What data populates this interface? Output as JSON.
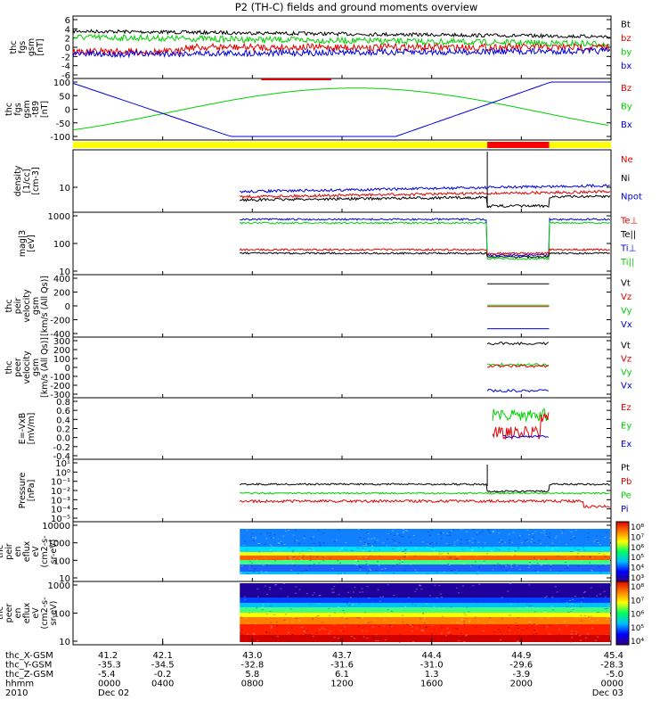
{
  "title": "P2 (TH-C) fields and ground moments overview",
  "colors": {
    "black": "#000000",
    "red": "#e00000",
    "green": "#00d000",
    "blue": "#0000e0",
    "yellow": "#ffff00",
    "bar_red": "#ff0000",
    "frame": "#000000"
  },
  "panels": [
    {
      "id": "fgs",
      "ylabel": [
        "thc",
        "fgs",
        "gsm",
        "[nT]"
      ],
      "yticks": [
        "6",
        "4",
        "2",
        "0",
        "-2",
        "-4",
        "-6"
      ],
      "ylim": [
        -6,
        6
      ],
      "legend": [
        {
          "label": "Bt",
          "color": "black"
        },
        {
          "label": "bz",
          "color": "red"
        },
        {
          "label": "by",
          "color": "green"
        },
        {
          "label": "bx",
          "color": "blue"
        }
      ]
    },
    {
      "id": "fgs_t89",
      "ylabel": [
        "thc",
        "fgs",
        "gsm",
        "-t89",
        "[nT]"
      ],
      "yticks": [
        "100",
        "50",
        "0",
        "-50",
        "-100"
      ],
      "ylim": [
        -125,
        100
      ],
      "legend": [
        {
          "label": "Bz",
          "color": "red"
        },
        {
          "label": "By",
          "color": "green"
        },
        {
          "label": "Bx",
          "color": "blue"
        }
      ]
    },
    {
      "id": "density",
      "ylabel": [
        "density",
        "[1/cc]",
        "[cm-3]"
      ],
      "yticks": [
        "10"
      ],
      "ylim_log": [
        0.3,
        300
      ],
      "legend": [
        {
          "label": "Ne",
          "color": "red"
        },
        {
          "label": "Ni",
          "color": "black"
        },
        {
          "label": "Npot",
          "color": "blue"
        }
      ]
    },
    {
      "id": "temperature",
      "ylabel": [
        "mag|3",
        "[eV]"
      ],
      "yticks": [
        "1000",
        "100",
        "10"
      ],
      "ylim_log": [
        3,
        1200
      ],
      "legend": [
        {
          "label": "Te⊥",
          "color": "red"
        },
        {
          "label": "Te||",
          "color": "black"
        },
        {
          "label": "Ti⊥",
          "color": "blue"
        },
        {
          "label": "Ti||",
          "color": "green"
        }
      ]
    },
    {
      "id": "peir_velocity",
      "ylabel": [
        "thc",
        "peir",
        "velocity",
        "gsm",
        "[km/s (All Qs)]"
      ],
      "yticks": [
        "400",
        "200",
        "0",
        "-200",
        "-400"
      ],
      "ylim": [
        -400,
        400
      ],
      "legend": [
        {
          "label": "Vt",
          "color": "black"
        },
        {
          "label": "Vz",
          "color": "red"
        },
        {
          "label": "Vy",
          "color": "green"
        },
        {
          "label": "Vx",
          "color": "blue"
        }
      ]
    },
    {
      "id": "peer_velocity",
      "ylabel": [
        "thc",
        "peer",
        "velocity",
        "gsm",
        "[km/s (All Qs)]"
      ],
      "yticks": [
        "300",
        "200",
        "100",
        "0",
        "-100",
        "-200",
        "-300"
      ],
      "ylim": [
        -300,
        300
      ],
      "legend": [
        {
          "label": "Vt",
          "color": "black"
        },
        {
          "label": "Vz",
          "color": "red"
        },
        {
          "label": "Vy",
          "color": "green"
        },
        {
          "label": "Vx",
          "color": "blue"
        }
      ]
    },
    {
      "id": "efield",
      "ylabel": [
        "E=-VxB",
        "[mV/m]"
      ],
      "yticks": [
        "0.8",
        "0.6",
        "0.4",
        "0.2",
        "0.0",
        "-0.2",
        "-0.4"
      ],
      "ylim": [
        -0.4,
        0.8
      ],
      "legend": [
        {
          "label": "Ez",
          "color": "red"
        },
        {
          "label": "Ey",
          "color": "green"
        },
        {
          "label": "Ex",
          "color": "blue"
        }
      ]
    },
    {
      "id": "pressure",
      "ylabel": [
        "Pressure",
        "[nPa]"
      ],
      "yticks": [
        "10¹",
        "10⁰",
        "10⁻¹",
        "10⁻²",
        "10⁻³",
        "10⁻⁴",
        "10⁻⁵"
      ],
      "ylim_log": [
        1e-05,
        30
      ],
      "legend": [
        {
          "label": "Pt",
          "color": "black"
        },
        {
          "label": "Pb",
          "color": "red"
        },
        {
          "label": "Pe",
          "color": "green"
        },
        {
          "label": "Pi",
          "color": "blue"
        }
      ]
    },
    {
      "id": "peir_en_eflux",
      "ylabel": [
        "thc",
        "peir",
        "en",
        "eflux",
        "eV",
        "(cm2-s-",
        "sr-eV)"
      ],
      "yticks": [
        "10000",
        "1000",
        "100",
        "10"
      ],
      "ylim_log": [
        10,
        20000
      ],
      "colorbar": [
        "10⁸",
        "10⁷",
        "10⁶",
        "10⁵",
        "10⁴",
        "10³"
      ]
    },
    {
      "id": "peer_en_eflux",
      "ylabel": [
        "thc",
        "peer",
        "en",
        "eflux",
        "eV",
        "(cm2-s-",
        "sr-eV)"
      ],
      "yticks": [
        "1000",
        "100",
        "10"
      ],
      "ylim_log": [
        5,
        5000
      ],
      "colorbar": [
        "10⁸",
        "10⁷",
        "10⁶",
        "10⁵",
        "10⁴"
      ]
    }
  ],
  "xaxis": {
    "rows": [
      {
        "label": "thc_X-GSM",
        "values": [
          "41.2",
          "42.1",
          "43.0",
          "43.7",
          "44.4",
          "44.9",
          "45.4"
        ]
      },
      {
        "label": "thc_Y-GSM",
        "values": [
          "-35.3",
          "-34.5",
          "-32.8",
          "-31.6",
          "-31.0",
          "-29.6",
          "-28.3"
        ]
      },
      {
        "label": "thc_Z-GSM",
        "values": [
          "-5.4",
          "-0.2",
          "5.8",
          "6.1",
          "1.3",
          "-3.9",
          "-5.0"
        ]
      },
      {
        "label": "hhmm",
        "values": [
          "0000",
          "0400",
          "0800",
          "1200",
          "1600",
          "2000",
          "0000"
        ]
      },
      {
        "label": "2010",
        "values": [
          "Dec 02",
          "",
          "",
          "",
          "",
          "",
          "Dec 03"
        ]
      }
    ]
  },
  "chart_data": [
    {
      "type": "line",
      "title": "P2 (TH-C) fields and ground moments overview",
      "ylabel": "thc fgs gsm [nT]",
      "x": [
        "0000",
        "0400",
        "0800",
        "1200",
        "1600",
        "2000",
        "0000"
      ],
      "series": [
        {
          "name": "Bt",
          "values": [
            3.3,
            4.0,
            3.0,
            2.8,
            2.6,
            2.5,
            1.6
          ]
        },
        {
          "name": "bz",
          "values": [
            -1.8,
            0.0,
            0.2,
            -0.2,
            -0.3,
            -0.6,
            -1.0
          ]
        },
        {
          "name": "by",
          "values": [
            2.0,
            2.3,
            1.0,
            0.5,
            0.6,
            0.3,
            1.0
          ]
        },
        {
          "name": "bx",
          "values": [
            -1.6,
            -2.5,
            -0.8,
            -0.5,
            -1.0,
            -1.5,
            0.2
          ]
        }
      ],
      "ylim": [
        -6,
        6
      ]
    },
    {
      "type": "line",
      "ylabel": "thc fgs gsm -t89 [nT]",
      "x": [
        "0000",
        "0400",
        "0800",
        "1200",
        "1600",
        "2000",
        "0000"
      ],
      "series": [
        {
          "name": "By",
          "values": [
            -75,
            -20,
            50,
            75,
            30,
            -20,
            -45
          ]
        },
        {
          "name": "Bx",
          "values": [
            95,
            10,
            -125,
            -125,
            -125,
            60,
            100
          ]
        }
      ],
      "ylim": [
        -125,
        100
      ]
    },
    {
      "type": "line",
      "ylabel": "density [1/cc] [cm-3]",
      "x": [
        "0800",
        "1200",
        "1600",
        "1800",
        "2000",
        "0000"
      ],
      "series": [
        {
          "name": "Ne",
          "values": [
            3.0,
            3.5,
            4.5,
            5.0,
            6.0,
            7.0
          ]
        },
        {
          "name": "Ni",
          "values": [
            2.5,
            2.8,
            3.2,
            3.5,
            2.5,
            3.5
          ]
        },
        {
          "name": "Npot",
          "values": [
            4.5,
            5.5,
            6.5,
            7.5,
            8.5,
            10.0
          ]
        }
      ]
    },
    {
      "type": "line",
      "ylabel": "mag|3 [eV]",
      "x": [
        "0800",
        "1200",
        "1600",
        "1800",
        "2000",
        "0000"
      ],
      "series": [
        {
          "name": "Te⊥",
          "values": [
            18,
            17,
            16,
            14,
            12,
            14
          ]
        },
        {
          "name": "Te||",
          "values": [
            12,
            12,
            11,
            10,
            9,
            11
          ]
        },
        {
          "name": "Ti⊥",
          "values": [
            700,
            680,
            650,
            600,
            13,
            650
          ]
        },
        {
          "name": "Ti||",
          "values": [
            450,
            440,
            430,
            420,
            9,
            480
          ]
        }
      ]
    },
    {
      "type": "line",
      "ylabel": "thc peir velocity gsm [km/s (All Qs)]",
      "x": [
        "1900",
        "2100"
      ],
      "series": [
        {
          "name": "Vt",
          "values": [
            320,
            320
          ]
        },
        {
          "name": "Vz",
          "values": [
            -10,
            -10
          ]
        },
        {
          "name": "Vy",
          "values": [
            10,
            10
          ]
        },
        {
          "name": "Vx",
          "values": [
            -300,
            -300
          ]
        }
      ]
    },
    {
      "type": "line",
      "ylabel": "thc peer velocity gsm [km/s (All Qs)]",
      "x": [
        "1900",
        "2100"
      ],
      "series": [
        {
          "name": "Vt",
          "values": [
            270,
            270
          ]
        },
        {
          "name": "Vz",
          "values": [
            20,
            20
          ]
        },
        {
          "name": "Vy",
          "values": [
            30,
            30
          ]
        },
        {
          "name": "Vx",
          "values": [
            -250,
            -250
          ]
        }
      ]
    },
    {
      "type": "line",
      "ylabel": "E=-VxB [mV/m]",
      "x": [
        "1900",
        "2000",
        "2100"
      ],
      "series": [
        {
          "name": "Ez",
          "values": [
            0.1,
            0.05,
            0.3
          ]
        },
        {
          "name": "Ey",
          "values": [
            0.4,
            0.6,
            0.5
          ]
        },
        {
          "name": "Ex",
          "values": [
            0.0,
            0.05,
            0.0
          ]
        }
      ]
    },
    {
      "type": "line",
      "ylabel": "Pressure [nPa]",
      "x": [
        "0800",
        "1200",
        "1600",
        "1800",
        "2000",
        "0000"
      ],
      "series": [
        {
          "name": "Pt",
          "values": [
            0.12,
            0.12,
            0.14,
            0.15,
            0.03,
            0.12
          ]
        },
        {
          "name": "Pb",
          "values": [
            0.001,
            0.0012,
            0.001,
            0.0012,
            0.0012,
            0.0008
          ]
        },
        {
          "name": "Pe",
          "values": [
            0.004,
            0.004,
            0.005,
            0.005,
            0.005,
            0.006
          ]
        }
      ]
    },
    {
      "type": "heatmap",
      "ylabel": "thc peir en eflux eV (cm2-s- sr-eV)",
      "x_range": [
        "0800",
        "0000"
      ],
      "ylim": [
        10,
        20000
      ]
    },
    {
      "type": "heatmap",
      "ylabel": "thc peer en eflux eV (cm2-s- sr-eV)",
      "x_range": [
        "0800",
        "0000"
      ],
      "ylim": [
        5,
        5000
      ]
    }
  ]
}
